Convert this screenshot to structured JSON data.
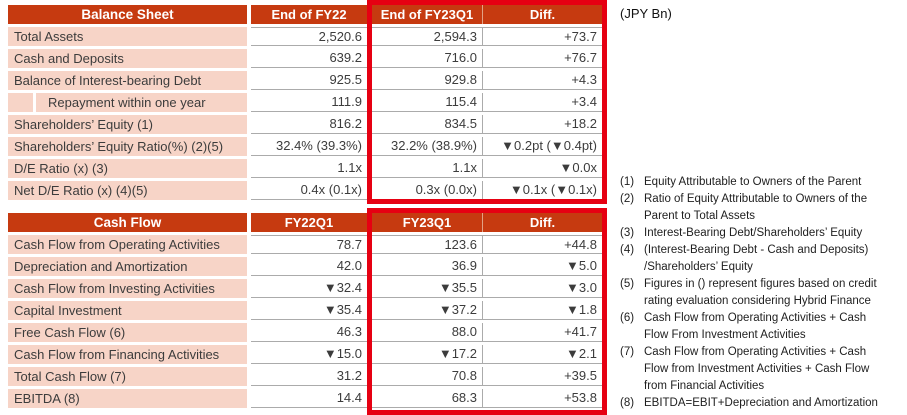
{
  "unit_label": "(JPY Bn)",
  "colors": {
    "header_bg": "#C63A10",
    "highlight_border": "#E60012",
    "label_bg": "#F7D4C7",
    "grid_line": "#ABABAB",
    "text": "#3C3C3C"
  },
  "balance_sheet": {
    "title": "Balance Sheet",
    "columns": [
      "End of FY22",
      "End of FY23Q1",
      "Diff."
    ],
    "rows": [
      {
        "label": "Total Assets",
        "indent": false,
        "values": [
          "2,520.6",
          "2,594.3",
          "+73.7"
        ]
      },
      {
        "label": "Cash and Deposits",
        "indent": false,
        "values": [
          "639.2",
          "716.0",
          "+76.7"
        ]
      },
      {
        "label": "Balance of Interest-bearing Debt",
        "indent": false,
        "values": [
          "925.5",
          "929.8",
          "+4.3"
        ]
      },
      {
        "label": "Repayment within one year",
        "indent": true,
        "values": [
          "111.9",
          "115.4",
          "+3.4"
        ]
      },
      {
        "label": "Shareholders’ Equity (1)",
        "indent": false,
        "values": [
          "816.2",
          "834.5",
          "+18.2"
        ]
      },
      {
        "label": "Shareholders’ Equity Ratio(%) (2)(5)",
        "indent": false,
        "values": [
          "32.4% (39.3%)",
          "32.2% (38.9%)",
          "▼0.2pt (▼0.4pt)"
        ]
      },
      {
        "label": "D/E Ratio (x) (3)",
        "indent": false,
        "values": [
          "1.1x",
          "1.1x",
          "▼0.0x"
        ]
      },
      {
        "label": "Net D/E Ratio (x) (4)(5)",
        "indent": false,
        "values": [
          "0.4x (0.1x)",
          "0.3x (0.0x)",
          "▼0.1x (▼0.1x)"
        ]
      }
    ]
  },
  "cash_flow": {
    "title": "Cash Flow",
    "columns": [
      "FY22Q1",
      "FY23Q1",
      "Diff."
    ],
    "rows": [
      {
        "label": "Cash Flow from Operating Activities",
        "indent": false,
        "values": [
          "78.7",
          "123.6",
          "+44.8"
        ]
      },
      {
        "label": "Depreciation and Amortization",
        "indent": false,
        "values": [
          "42.0",
          "36.9",
          "▼5.0"
        ]
      },
      {
        "label": "Cash Flow from Investing Activities",
        "indent": false,
        "values": [
          "▼32.4",
          "▼35.5",
          "▼3.0"
        ]
      },
      {
        "label": "Capital Investment",
        "indent": false,
        "values": [
          "▼35.4",
          "▼37.2",
          "▼1.8"
        ]
      },
      {
        "label": "Free Cash Flow (6)",
        "indent": false,
        "values": [
          "46.3",
          "88.0",
          "+41.7"
        ]
      },
      {
        "label": "Cash Flow from Financing Activities",
        "indent": false,
        "values": [
          "▼15.0",
          "▼17.2",
          "▼2.1"
        ]
      },
      {
        "label": "Total Cash Flow (7)",
        "indent": false,
        "values": [
          "31.2",
          "70.8",
          "+39.5"
        ]
      },
      {
        "label": "EBITDA (8)",
        "indent": false,
        "values": [
          "14.4",
          "68.3",
          "+53.8"
        ]
      }
    ]
  },
  "footnotes": [
    {
      "num": "(1)",
      "text": "Equity Attributable to Owners of the Parent"
    },
    {
      "num": "(2)",
      "text": "Ratio of Equity Attributable to Owners of the\nParent to Total Assets"
    },
    {
      "num": "(3)",
      "text": "Interest-Bearing Debt/Shareholders’ Equity"
    },
    {
      "num": "(4)",
      "text": "(Interest-Bearing Debt - Cash and Deposits)\n/Shareholders’ Equity"
    },
    {
      "num": "(5)",
      "text": "Figures in () represent figures based on credit\nrating evaluation considering Hybrid Finance"
    },
    {
      "num": "(6)",
      "text": "Cash Flow from Operating Activities + Cash\nFlow From Investment Activities"
    },
    {
      "num": "(7)",
      "text": "Cash Flow from Operating Activities + Cash\nFlow from Investment Activities + Cash Flow\nfrom Financial Activities"
    },
    {
      "num": "(8)",
      "text": "EBITDA=EBIT+Depreciation and Amortization"
    }
  ]
}
